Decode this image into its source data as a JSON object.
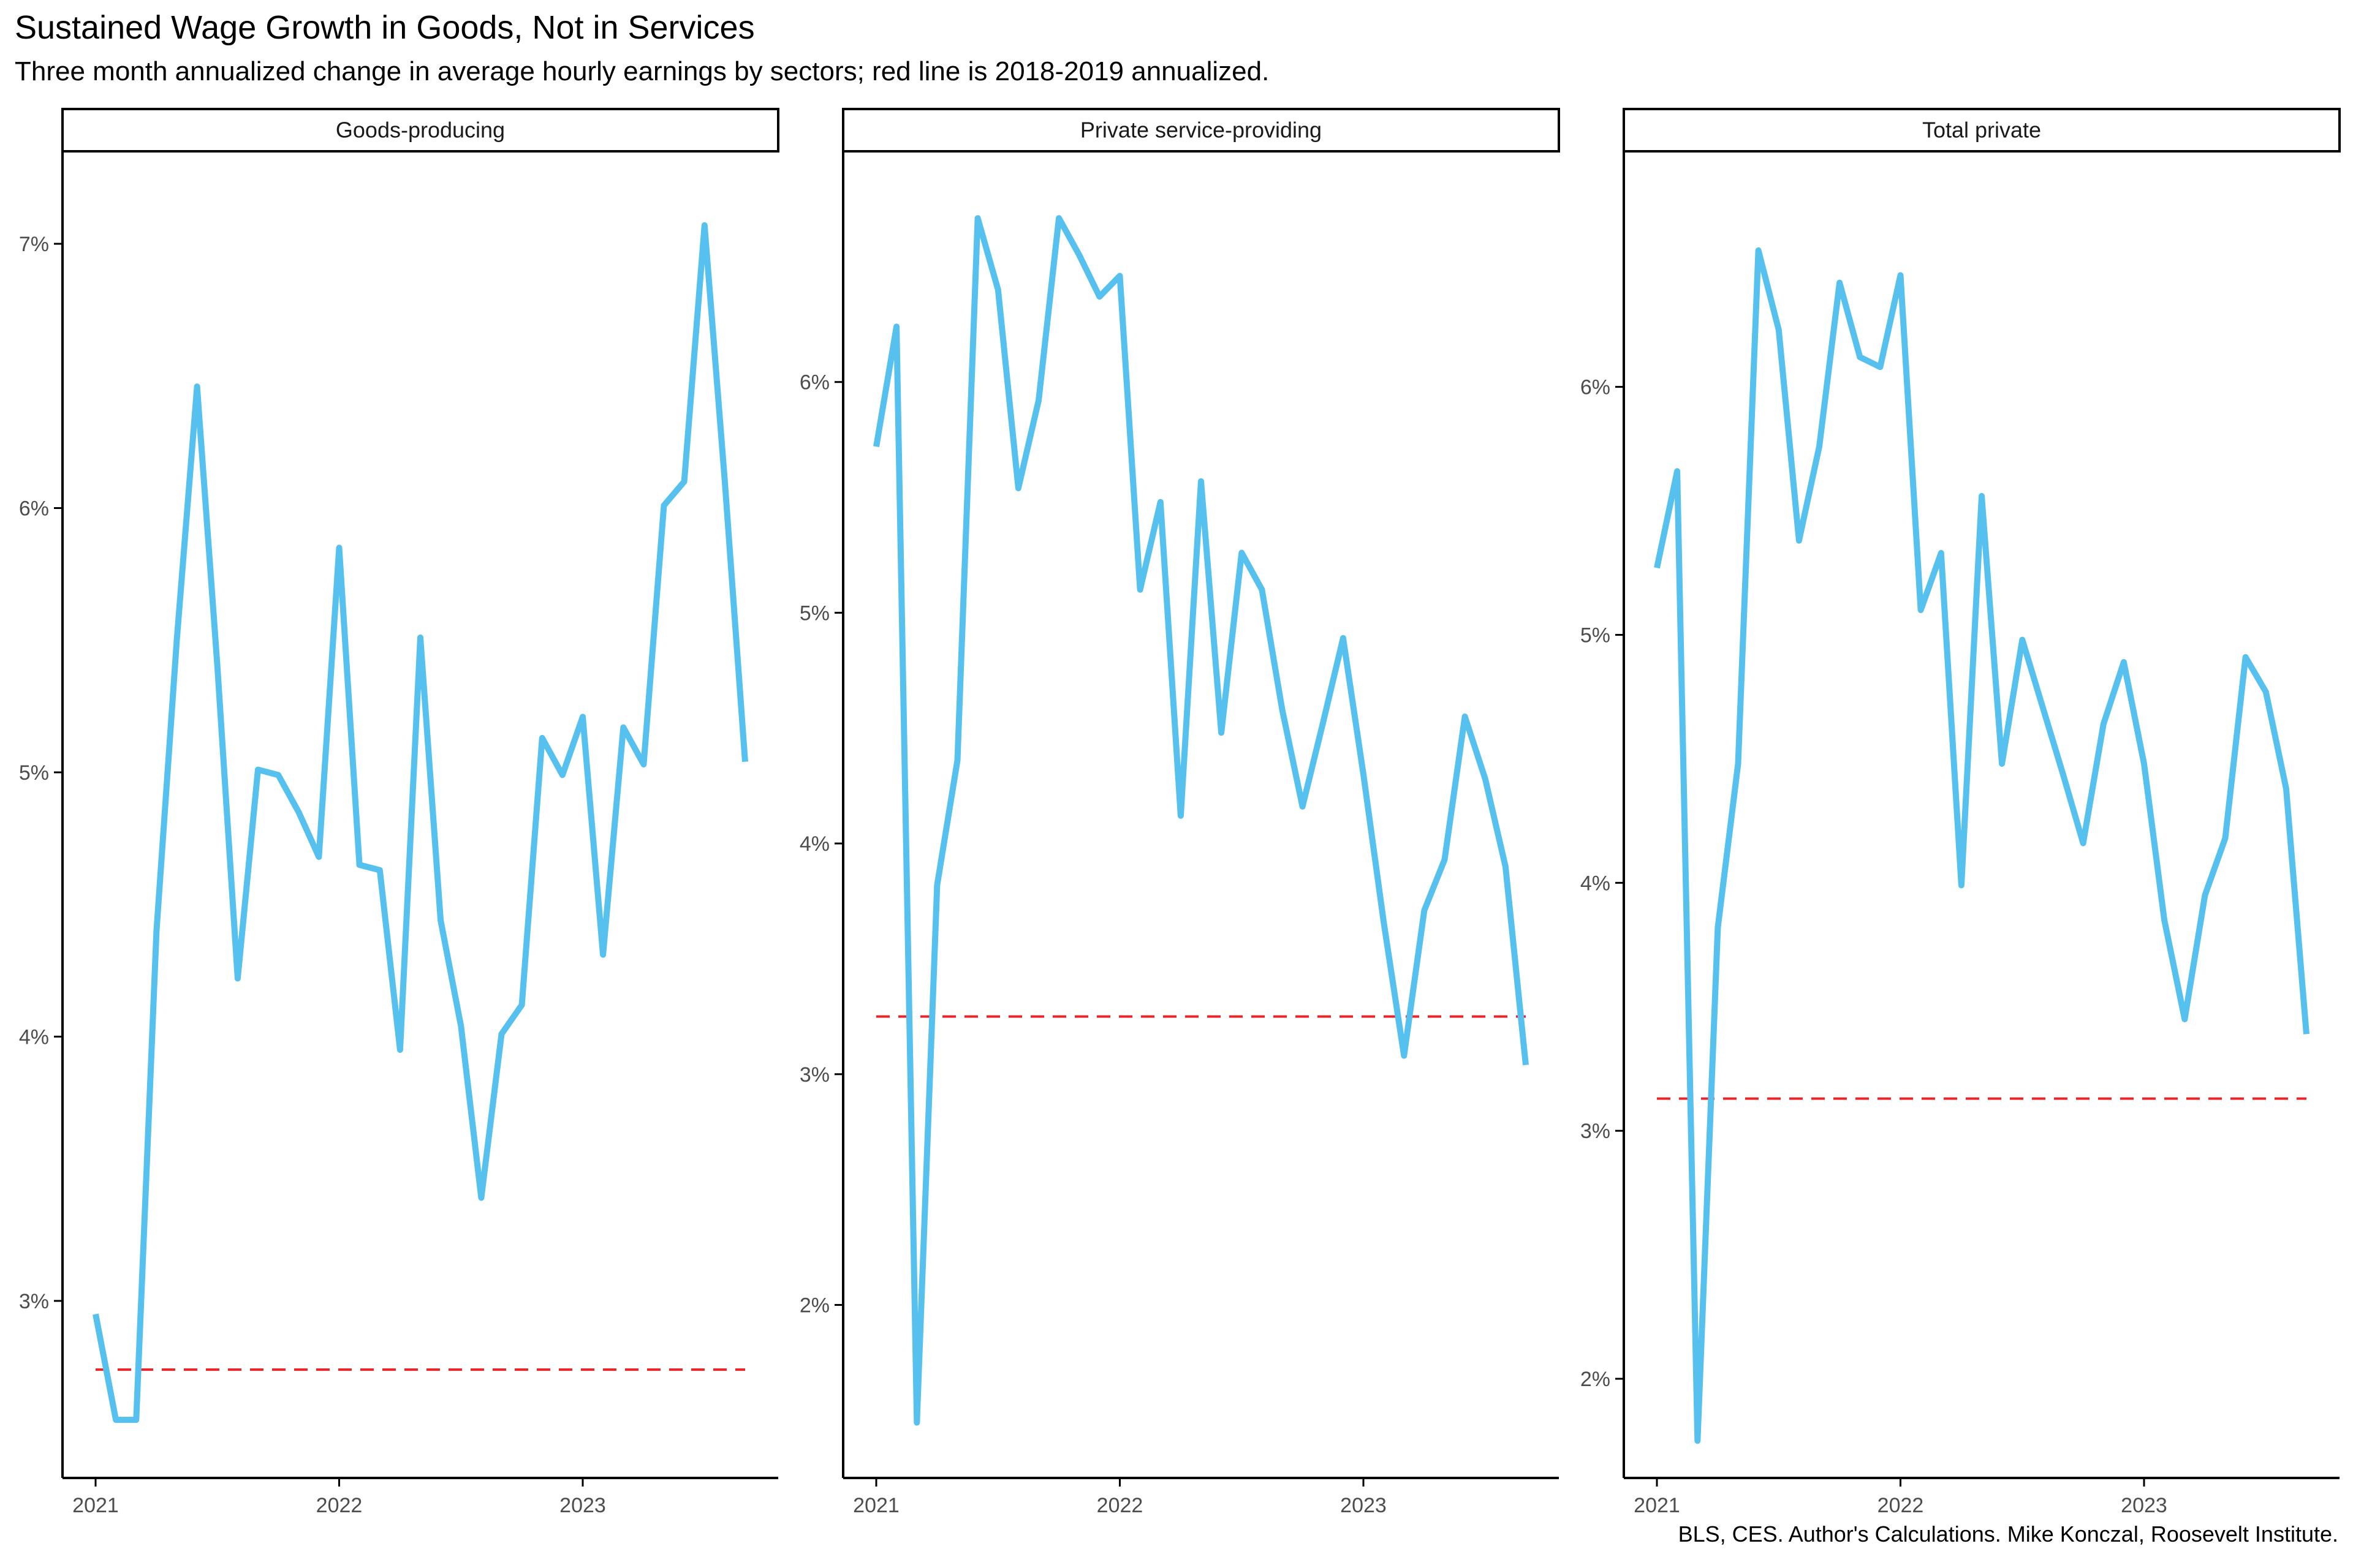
{
  "title": "Sustained Wage Growth in Goods, Not in Services",
  "subtitle": "Three month annualized change in average hourly earnings by sectors; red line is 2018-2019 annualized.",
  "caption": "BLS, CES. Author's Calculations. Mike Konczal, Roosevelt Institute.",
  "colors": {
    "series": "#56C1EE",
    "reference": "#E8262A",
    "axis": "#000000"
  },
  "chart_data": [
    {
      "type": "line",
      "panel": "Goods-producing",
      "x": [
        "2021-01",
        "2021-02",
        "2021-03",
        "2021-04",
        "2021-05",
        "2021-06",
        "2021-07",
        "2021-08",
        "2021-09",
        "2021-10",
        "2021-11",
        "2021-12",
        "2022-01",
        "2022-02",
        "2022-03",
        "2022-04",
        "2022-05",
        "2022-06",
        "2022-07",
        "2022-08",
        "2022-09",
        "2022-10",
        "2022-11",
        "2022-12",
        "2023-01",
        "2023-02",
        "2023-03",
        "2023-04",
        "2023-05",
        "2023-06",
        "2023-07",
        "2023-08",
        "2023-09"
      ],
      "series": [
        {
          "values": [
            2.95,
            2.55,
            2.55,
            4.4,
            5.5,
            6.46,
            5.4,
            4.22,
            5.01,
            4.99,
            4.85,
            4.68,
            5.85,
            4.65,
            4.63,
            3.95,
            5.51,
            4.44,
            4.04,
            3.39,
            4.01,
            4.12,
            5.13,
            4.99,
            5.21,
            4.31,
            5.17,
            5.03,
            6.01,
            6.1,
            7.07,
            6.1,
            5.04
          ]
        }
      ],
      "reference_line": 2.74,
      "ylim": [
        2.33,
        7.35
      ],
      "yticks": [
        3,
        4,
        5,
        6,
        7
      ],
      "ytick_labels": [
        "3%",
        "4%",
        "5%",
        "6%",
        "7%"
      ],
      "xticks": [
        "2021-01",
        "2022-01",
        "2023-01"
      ],
      "xtick_labels": [
        "2021",
        "2022",
        "2023"
      ],
      "grid": false
    },
    {
      "type": "line",
      "panel": "Private service-providing",
      "x": [
        "2021-01",
        "2021-02",
        "2021-03",
        "2021-04",
        "2021-05",
        "2021-06",
        "2021-07",
        "2021-08",
        "2021-09",
        "2021-10",
        "2021-11",
        "2021-12",
        "2022-01",
        "2022-02",
        "2022-03",
        "2022-04",
        "2022-05",
        "2022-06",
        "2022-07",
        "2022-08",
        "2022-09",
        "2022-10",
        "2022-11",
        "2022-12",
        "2023-01",
        "2023-02",
        "2023-03",
        "2023-04",
        "2023-05",
        "2023-06",
        "2023-07",
        "2023-08",
        "2023-09"
      ],
      "series": [
        {
          "values": [
            5.72,
            6.24,
            1.49,
            3.82,
            4.36,
            6.71,
            6.4,
            5.54,
            5.92,
            6.71,
            6.55,
            6.37,
            6.46,
            5.1,
            5.48,
            4.12,
            5.57,
            4.48,
            5.26,
            5.1,
            4.58,
            4.16,
            4.52,
            4.89,
            4.3,
            3.66,
            3.08,
            3.71,
            3.93,
            4.55,
            4.28,
            3.9,
            3.04
          ]
        }
      ],
      "reference_line": 3.25,
      "ylim": [
        1.25,
        7.0
      ],
      "yticks": [
        2,
        3,
        4,
        5,
        6
      ],
      "ytick_labels": [
        "2%",
        "3%",
        "4%",
        "5%",
        "6%"
      ],
      "xticks": [
        "2021-01",
        "2022-01",
        "2023-01"
      ],
      "xtick_labels": [
        "2021",
        "2022",
        "2023"
      ],
      "grid": false
    },
    {
      "type": "line",
      "panel": "Total private",
      "x": [
        "2021-01",
        "2021-02",
        "2021-03",
        "2021-04",
        "2021-05",
        "2021-06",
        "2021-07",
        "2021-08",
        "2021-09",
        "2021-10",
        "2021-11",
        "2021-12",
        "2022-01",
        "2022-02",
        "2022-03",
        "2022-04",
        "2022-05",
        "2022-06",
        "2022-07",
        "2022-08",
        "2022-09",
        "2022-10",
        "2022-11",
        "2022-12",
        "2023-01",
        "2023-02",
        "2023-03",
        "2023-04",
        "2023-05",
        "2023-06",
        "2023-07",
        "2023-08",
        "2023-09"
      ],
      "series": [
        {
          "values": [
            5.27,
            5.66,
            1.75,
            3.82,
            4.48,
            6.55,
            6.23,
            5.38,
            5.76,
            6.42,
            6.12,
            6.08,
            6.45,
            5.1,
            5.33,
            3.99,
            5.56,
            4.48,
            4.98,
            4.71,
            4.44,
            4.16,
            4.64,
            4.89,
            4.48,
            3.85,
            3.45,
            3.95,
            4.18,
            4.91,
            4.77,
            4.38,
            3.39
          ]
        }
      ],
      "reference_line": 3.13,
      "ylim": [
        1.6,
        6.95
      ],
      "yticks": [
        2,
        3,
        4,
        5,
        6
      ],
      "ytick_labels": [
        "2%",
        "3%",
        "4%",
        "5%",
        "6%"
      ],
      "xticks": [
        "2021-01",
        "2022-01",
        "2023-01"
      ],
      "xtick_labels": [
        "2021",
        "2022",
        "2023"
      ],
      "grid": false
    }
  ]
}
